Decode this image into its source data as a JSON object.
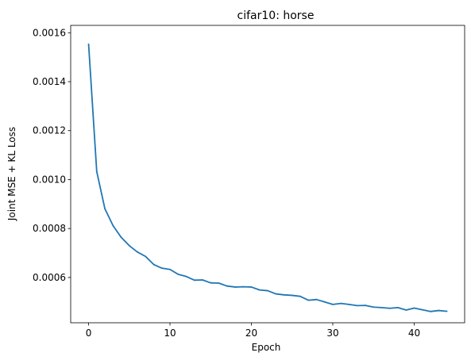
{
  "chart_data": {
    "type": "line",
    "title": "cifar10: horse",
    "xlabel": "Epoch",
    "ylabel": "Joint MSE + KL Loss",
    "xlim": [
      -2.2,
      46.2
    ],
    "ylim": [
      0.000415,
      0.00163
    ],
    "xticks": [
      0,
      10,
      20,
      30,
      40
    ],
    "yticks": [
      0.0006,
      0.0008,
      0.001,
      0.0012,
      0.0014,
      0.0016
    ],
    "ytick_labels": [
      "0.0006",
      "0.0008",
      "0.0010",
      "0.0012",
      "0.0014",
      "0.0016"
    ],
    "grid": false,
    "series": [
      {
        "color": "#1f77b4",
        "x": [
          0,
          1,
          2,
          3,
          4,
          5,
          6,
          7,
          8,
          9,
          10,
          11,
          12,
          13,
          14,
          15,
          16,
          17,
          18,
          19,
          20,
          21,
          22,
          23,
          24,
          25,
          26,
          27,
          28,
          29,
          30,
          31,
          32,
          33,
          34,
          35,
          36,
          37,
          38,
          39,
          40,
          41,
          42,
          43,
          44
        ],
        "y": [
          0.001553,
          0.001033,
          0.000881,
          0.000812,
          0.000764,
          0.00073,
          0.000704,
          0.000686,
          0.000653,
          0.000638,
          0.000633,
          0.000613,
          0.000604,
          0.000589,
          0.00059,
          0.000578,
          0.000577,
          0.000565,
          0.000561,
          0.000562,
          0.000561,
          0.000549,
          0.000546,
          0.000533,
          0.000529,
          0.000527,
          0.000523,
          0.000507,
          0.00051,
          0.0005,
          0.00049,
          0.000494,
          0.00049,
          0.000485,
          0.000486,
          0.000479,
          0.000477,
          0.000474,
          0.000477,
          0.000467,
          0.000475,
          0.000468,
          0.000461,
          0.000465,
          0.000462
        ]
      }
    ]
  }
}
